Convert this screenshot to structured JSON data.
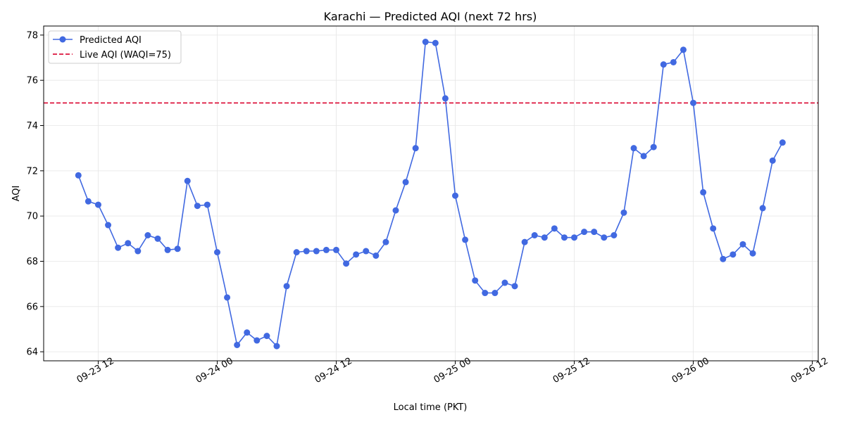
{
  "chart_data": {
    "type": "line",
    "title": "Karachi — Predicted AQI (next 72 hrs)",
    "xlabel": "Local time (PKT)",
    "ylabel": "AQI",
    "x_tick_labels": [
      "09-23 12",
      "09-24 00",
      "09-24 12",
      "09-25 00",
      "09-25 12",
      "09-26 00",
      "09-26 12"
    ],
    "x_tick_hours": [
      0,
      12,
      24,
      36,
      48,
      60,
      72
    ],
    "y_ticks": [
      64,
      66,
      68,
      70,
      72,
      74,
      76,
      78
    ],
    "xlim_hours": [
      -5.5,
      72.6
    ],
    "ylim": [
      63.6,
      78.4
    ],
    "grid": true,
    "legend_position": "top-left",
    "colors": {
      "predicted": "#4169e1",
      "live": "#dc143c"
    },
    "series": [
      {
        "name": "Predicted AQI",
        "x_start_hour": -2,
        "x_step_hours": 1,
        "values": [
          71.8,
          70.65,
          70.5,
          69.6,
          68.6,
          68.8,
          68.45,
          69.15,
          69.0,
          68.5,
          68.55,
          71.55,
          70.45,
          70.5,
          68.4,
          66.4,
          64.3,
          64.85,
          64.5,
          64.7,
          64.25,
          66.9,
          68.4,
          68.45,
          68.45,
          68.5,
          68.5,
          67.9,
          68.3,
          68.45,
          68.25,
          68.85,
          70.25,
          71.5,
          73.0,
          77.7,
          77.65,
          75.2,
          70.9,
          68.95,
          67.15,
          66.6,
          66.6,
          67.05,
          66.9,
          68.85,
          69.15,
          69.05,
          69.45,
          69.05,
          69.05,
          69.3,
          69.3,
          69.05,
          69.15,
          70.15,
          73.0,
          72.65,
          73.05,
          76.7,
          76.8,
          77.35,
          75.0,
          71.05,
          69.45,
          68.1,
          68.3,
          68.75,
          68.35,
          70.35,
          72.45,
          73.25
        ]
      }
    ],
    "reference_line": {
      "name": "Live AQI (WAQI=75)",
      "value": 75
    }
  }
}
